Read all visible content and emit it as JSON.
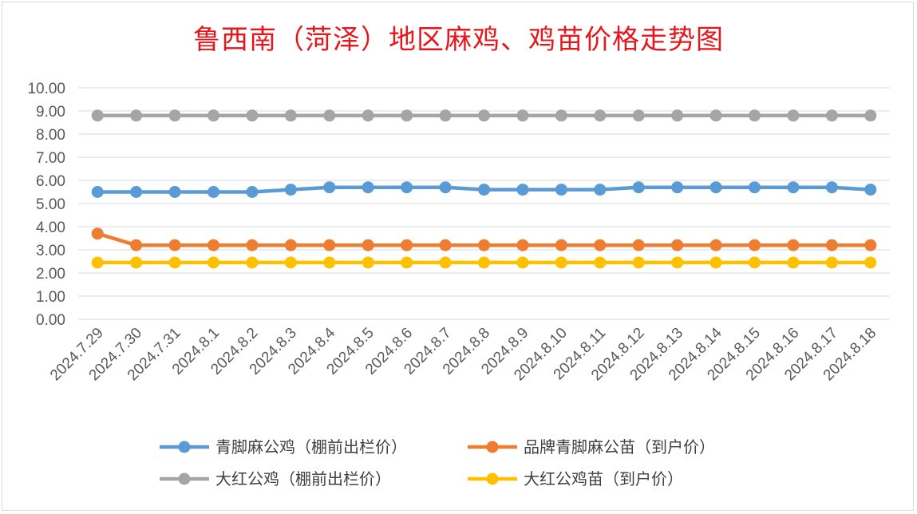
{
  "chart_data": {
    "type": "line",
    "title": "鲁西南（菏泽）地区麻鸡、鸡苗价格走势图",
    "xlabel": "",
    "ylabel": "",
    "ylim": [
      0,
      10
    ],
    "yticks": [
      "10.00",
      "9.00",
      "8.00",
      "7.00",
      "6.00",
      "5.00",
      "4.00",
      "3.00",
      "2.00",
      "1.00",
      "0.00"
    ],
    "ytick_values": [
      10,
      9,
      8,
      7,
      6,
      5,
      4,
      3,
      2,
      1,
      0
    ],
    "grid": true,
    "legend_position": "bottom",
    "categories": [
      "2024.7.29",
      "2024.7.30",
      "2024.7.31",
      "2024.8.1",
      "2024.8.2",
      "2024.8.3",
      "2024.8.4",
      "2024.8.5",
      "2024.8.6",
      "2024.8.7",
      "2024.8.8",
      "2024.8.9",
      "2024.8.10",
      "2024.8.11",
      "2024.8.12",
      "2024.8.13",
      "2024.8.14",
      "2024.8.15",
      "2024.8.16",
      "2024.8.17",
      "2024.8.18"
    ],
    "series": [
      {
        "name": "青脚麻公鸡（棚前出栏价）",
        "color": "#5b9bd5",
        "values": [
          5.5,
          5.5,
          5.5,
          5.5,
          5.5,
          5.6,
          5.7,
          5.7,
          5.7,
          5.7,
          5.6,
          5.6,
          5.6,
          5.6,
          5.7,
          5.7,
          5.7,
          5.7,
          5.7,
          5.7,
          5.6
        ]
      },
      {
        "name": "品牌青脚麻公苗（到户价）",
        "color": "#ed7d31",
        "values": [
          3.7,
          3.2,
          3.2,
          3.2,
          3.2,
          3.2,
          3.2,
          3.2,
          3.2,
          3.2,
          3.2,
          3.2,
          3.2,
          3.2,
          3.2,
          3.2,
          3.2,
          3.2,
          3.2,
          3.2,
          3.2
        ]
      },
      {
        "name": "大红公鸡（棚前出栏价）",
        "color": "#a5a5a5",
        "values": [
          8.8,
          8.8,
          8.8,
          8.8,
          8.8,
          8.8,
          8.8,
          8.8,
          8.8,
          8.8,
          8.8,
          8.8,
          8.8,
          8.8,
          8.8,
          8.8,
          8.8,
          8.8,
          8.8,
          8.8,
          8.8
        ]
      },
      {
        "name": "大红公鸡苗（到户价）",
        "color": "#ffc000",
        "values": [
          2.45,
          2.45,
          2.45,
          2.45,
          2.45,
          2.45,
          2.45,
          2.45,
          2.45,
          2.45,
          2.45,
          2.45,
          2.45,
          2.45,
          2.45,
          2.45,
          2.45,
          2.45,
          2.45,
          2.45,
          2.45
        ]
      }
    ]
  }
}
